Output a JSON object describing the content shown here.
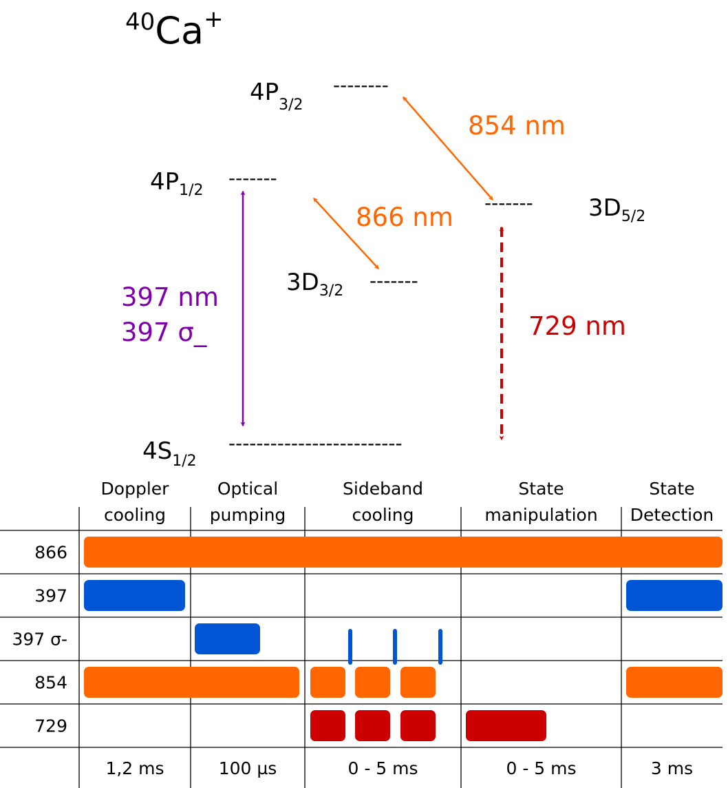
{
  "title": {
    "superscript": "40",
    "base": "Ca",
    "charge": "+"
  },
  "levels": [
    {
      "id": "4P32",
      "main": "4P",
      "sub": "3/2",
      "dashes": "--------"
    },
    {
      "id": "4P12",
      "main": "4P",
      "sub": "1/2",
      "dashes": "-------"
    },
    {
      "id": "3D52",
      "main": "3D",
      "sub": "5/2",
      "dashes": "-------"
    },
    {
      "id": "3D32",
      "main": "3D",
      "sub": "3/2",
      "dashes": "-------"
    },
    {
      "id": "4S12",
      "main": "4S",
      "sub": "1/2",
      "dashes": "-------------------------"
    }
  ],
  "transitions": [
    {
      "id": "t854",
      "label": "854 nm",
      "color": "#ff6600"
    },
    {
      "id": "t866",
      "label": "866 nm",
      "color": "#ff6600"
    },
    {
      "id": "t397",
      "label": "397 nm",
      "label2": "397 σ_",
      "color": "#7f00aa"
    },
    {
      "id": "t729",
      "label": "729 nm",
      "color": "#cc0000"
    }
  ],
  "sequence": {
    "phases": [
      {
        "line1": "Doppler",
        "line2": "cooling",
        "duration": "1,2 ms"
      },
      {
        "line1": "Optical",
        "line2": "pumping",
        "duration": "100 µs"
      },
      {
        "line1": "Sideband",
        "line2": "cooling",
        "duration": "0 - 5 ms"
      },
      {
        "line1": "State",
        "line2": "manipulation",
        "duration": "0 - 5 ms"
      },
      {
        "line1": "State",
        "line2": "Detection",
        "duration": "3 ms"
      }
    ],
    "rows": [
      {
        "label": "866",
        "color": "#ff6600"
      },
      {
        "label": "397",
        "color": "#0055d4"
      },
      {
        "label": "397 σ-",
        "color": "#0055d4"
      },
      {
        "label": "854",
        "color": "#ff6600"
      },
      {
        "label": "729",
        "color": "#cc0000"
      }
    ]
  }
}
